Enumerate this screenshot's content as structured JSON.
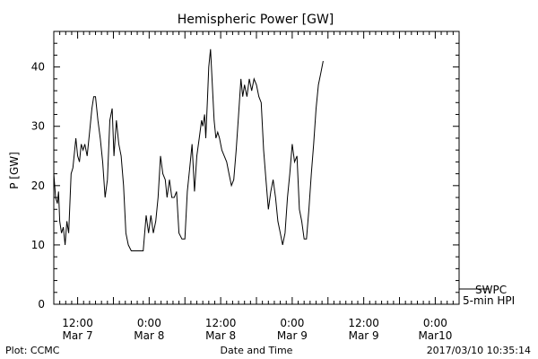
{
  "chart_data": {
    "type": "line",
    "title": "Hemispheric Power [GW]",
    "xlabel": "Date and Time",
    "ylabel": "P [GW]",
    "ylim": [
      0,
      46
    ],
    "y_ticks": [
      0,
      10,
      20,
      30,
      40
    ],
    "x_range": [
      8,
      76
    ],
    "x_ticks": [
      {
        "x": 12,
        "line1": "12:00",
        "line2": "Mar 7"
      },
      {
        "x": 24,
        "line1": "0:00",
        "line2": "Mar 8"
      },
      {
        "x": 36,
        "line1": "12:00",
        "line2": "Mar 8"
      },
      {
        "x": 48,
        "line1": "0:00",
        "line2": "Mar 9"
      },
      {
        "x": 60,
        "line1": "12:00",
        "line2": "Mar 9"
      },
      {
        "x": 72,
        "line1": "0:00",
        "line2": "Mar10"
      }
    ],
    "legend": {
      "line1": "SWPC",
      "line2": "5-min HPI",
      "placement": "right, outside bottom"
    },
    "series": [
      {
        "color": "#000000",
        "points": [
          [
            8.0,
            22
          ],
          [
            8.3,
            18
          ],
          [
            8.6,
            17
          ],
          [
            8.8,
            19
          ],
          [
            9.0,
            14
          ],
          [
            9.3,
            12
          ],
          [
            9.6,
            13
          ],
          [
            9.9,
            10
          ],
          [
            10.2,
            14
          ],
          [
            10.5,
            12
          ],
          [
            10.9,
            22
          ],
          [
            11.2,
            23
          ],
          [
            11.5,
            26
          ],
          [
            11.7,
            28
          ],
          [
            12.0,
            25
          ],
          [
            12.3,
            24
          ],
          [
            12.6,
            27
          ],
          [
            12.9,
            26
          ],
          [
            13.2,
            27
          ],
          [
            13.6,
            25
          ],
          [
            14.0,
            29
          ],
          [
            14.4,
            33
          ],
          [
            14.7,
            35
          ],
          [
            15.0,
            35
          ],
          [
            15.4,
            31
          ],
          [
            15.8,
            28
          ],
          [
            16.2,
            24
          ],
          [
            16.6,
            18
          ],
          [
            17.0,
            21
          ],
          [
            17.4,
            31
          ],
          [
            17.8,
            33
          ],
          [
            18.1,
            25
          ],
          [
            18.5,
            31
          ],
          [
            18.9,
            27
          ],
          [
            19.3,
            25
          ],
          [
            19.7,
            20
          ],
          [
            20.1,
            12
          ],
          [
            20.5,
            10
          ],
          [
            21.0,
            9
          ],
          [
            21.5,
            9
          ],
          [
            22.0,
            9
          ],
          [
            22.5,
            9
          ],
          [
            23.0,
            9
          ],
          [
            23.5,
            15
          ],
          [
            23.9,
            12
          ],
          [
            24.3,
            15
          ],
          [
            24.7,
            12
          ],
          [
            25.1,
            14
          ],
          [
            25.5,
            18
          ],
          [
            25.9,
            25
          ],
          [
            26.3,
            22
          ],
          [
            26.7,
            21
          ],
          [
            27.0,
            18
          ],
          [
            27.4,
            21
          ],
          [
            27.8,
            18
          ],
          [
            28.2,
            18
          ],
          [
            28.6,
            19
          ],
          [
            29.0,
            12
          ],
          [
            29.5,
            11
          ],
          [
            30.0,
            11
          ],
          [
            30.4,
            19
          ],
          [
            30.8,
            23
          ],
          [
            31.2,
            27
          ],
          [
            31.6,
            19
          ],
          [
            32.0,
            25
          ],
          [
            32.4,
            28
          ],
          [
            32.8,
            31
          ],
          [
            33.0,
            30
          ],
          [
            33.3,
            32
          ],
          [
            33.5,
            28
          ],
          [
            33.8,
            35
          ],
          [
            34.0,
            40
          ],
          [
            34.3,
            43
          ],
          [
            34.6,
            37
          ],
          [
            34.9,
            31
          ],
          [
            35.2,
            28
          ],
          [
            35.5,
            29
          ],
          [
            35.8,
            28
          ],
          [
            36.2,
            26
          ],
          [
            36.6,
            25
          ],
          [
            37.0,
            24
          ],
          [
            37.4,
            22
          ],
          [
            37.8,
            20
          ],
          [
            38.2,
            21
          ],
          [
            38.6,
            26
          ],
          [
            39.0,
            32
          ],
          [
            39.4,
            38
          ],
          [
            39.7,
            35
          ],
          [
            40.0,
            37
          ],
          [
            40.4,
            35
          ],
          [
            40.8,
            38
          ],
          [
            41.2,
            36
          ],
          [
            41.6,
            38
          ],
          [
            42.0,
            37
          ],
          [
            42.4,
            35
          ],
          [
            42.8,
            34
          ],
          [
            43.2,
            26
          ],
          [
            43.6,
            21
          ],
          [
            44.0,
            16
          ],
          [
            44.4,
            19
          ],
          [
            44.8,
            21
          ],
          [
            45.2,
            18
          ],
          [
            45.6,
            14
          ],
          [
            46.0,
            12
          ],
          [
            46.4,
            10
          ],
          [
            46.8,
            12
          ],
          [
            47.2,
            18
          ],
          [
            47.6,
            22
          ],
          [
            48.0,
            27
          ],
          [
            48.4,
            24
          ],
          [
            48.8,
            25
          ],
          [
            49.2,
            16
          ],
          [
            49.6,
            14
          ],
          [
            50.0,
            11
          ],
          [
            50.4,
            11
          ],
          [
            50.8,
            16
          ],
          [
            51.2,
            22
          ],
          [
            51.6,
            27
          ],
          [
            52.0,
            33
          ],
          [
            52.4,
            37
          ],
          [
            52.8,
            39
          ],
          [
            53.2,
            41
          ]
        ]
      }
    ]
  },
  "footer": {
    "plot_credit": "Plot: CCMC",
    "timestamp": "2017/03/10 10:35:14"
  }
}
